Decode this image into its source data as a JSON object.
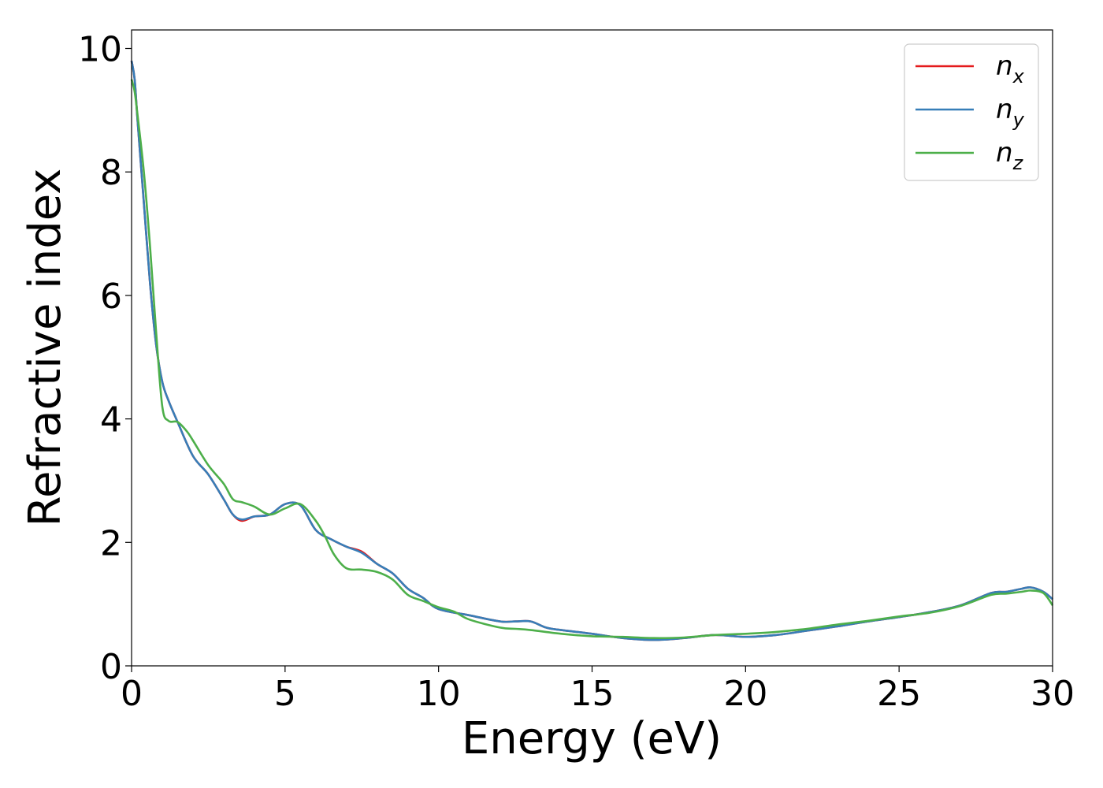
{
  "chart_data": {
    "type": "line",
    "title": "",
    "xlabel": "Energy (eV)",
    "ylabel": "Refractive index",
    "xlim": [
      0,
      30
    ],
    "ylim": [
      0,
      10.3
    ],
    "xticks": [
      0,
      5,
      10,
      15,
      20,
      25,
      30
    ],
    "yticks": [
      0,
      2,
      4,
      6,
      8,
      10
    ],
    "grid": false,
    "legend_position": "top-right",
    "series": [
      {
        "name": "n",
        "subscript": "x",
        "color": "#e41a1c",
        "x": [
          0.0,
          0.1,
          0.2,
          0.4,
          0.6,
          0.8,
          1.0,
          1.2,
          1.5,
          2.0,
          2.5,
          3.0,
          3.3,
          3.6,
          4.0,
          4.5,
          5.0,
          5.5,
          6.0,
          6.5,
          7.0,
          7.5,
          8.0,
          8.5,
          9.0,
          9.5,
          10.0,
          11.0,
          12.0,
          12.5,
          13.0,
          13.5,
          14.0,
          15.0,
          16.0,
          17.0,
          18.0,
          19.0,
          20.0,
          21.0,
          22.0,
          23.0,
          24.0,
          25.0,
          26.0,
          27.0,
          28.0,
          28.5,
          29.0,
          29.3,
          29.7,
          30.0
        ],
        "y": [
          9.8,
          9.5,
          8.8,
          7.5,
          6.2,
          5.2,
          4.6,
          4.3,
          3.95,
          3.4,
          3.1,
          2.7,
          2.45,
          2.35,
          2.42,
          2.45,
          2.62,
          2.6,
          2.2,
          2.05,
          1.93,
          1.85,
          1.65,
          1.5,
          1.25,
          1.1,
          0.92,
          0.82,
          0.72,
          0.72,
          0.72,
          0.62,
          0.58,
          0.52,
          0.45,
          0.42,
          0.45,
          0.5,
          0.47,
          0.5,
          0.57,
          0.64,
          0.72,
          0.79,
          0.87,
          0.98,
          1.18,
          1.2,
          1.25,
          1.27,
          1.2,
          1.08
        ]
      },
      {
        "name": "n",
        "subscript": "y",
        "color": "#377eb8",
        "x": [
          0.0,
          0.1,
          0.2,
          0.4,
          0.6,
          0.8,
          1.0,
          1.2,
          1.5,
          2.0,
          2.5,
          3.0,
          3.3,
          3.6,
          4.0,
          4.5,
          5.0,
          5.5,
          6.0,
          6.5,
          7.0,
          7.5,
          8.0,
          8.5,
          9.0,
          9.5,
          10.0,
          11.0,
          12.0,
          12.5,
          13.0,
          13.5,
          14.0,
          15.0,
          16.0,
          17.0,
          18.0,
          19.0,
          20.0,
          21.0,
          22.0,
          23.0,
          24.0,
          25.0,
          26.0,
          27.0,
          28.0,
          28.5,
          29.0,
          29.3,
          29.7,
          30.0
        ],
        "y": [
          9.8,
          9.5,
          8.8,
          7.5,
          6.2,
          5.2,
          4.6,
          4.3,
          3.95,
          3.4,
          3.1,
          2.7,
          2.45,
          2.37,
          2.42,
          2.45,
          2.62,
          2.6,
          2.2,
          2.05,
          1.93,
          1.83,
          1.65,
          1.5,
          1.25,
          1.1,
          0.92,
          0.82,
          0.72,
          0.72,
          0.72,
          0.62,
          0.58,
          0.52,
          0.45,
          0.42,
          0.45,
          0.5,
          0.47,
          0.5,
          0.57,
          0.64,
          0.72,
          0.79,
          0.87,
          0.98,
          1.18,
          1.2,
          1.25,
          1.27,
          1.2,
          1.08
        ]
      },
      {
        "name": "n",
        "subscript": "z",
        "color": "#4daf4a",
        "x": [
          0.0,
          0.1,
          0.2,
          0.4,
          0.6,
          0.8,
          1.0,
          1.2,
          1.5,
          1.8,
          2.0,
          2.5,
          3.0,
          3.3,
          3.6,
          4.0,
          4.5,
          5.0,
          5.5,
          6.0,
          6.3,
          6.6,
          7.0,
          7.5,
          8.0,
          8.5,
          9.0,
          9.5,
          10.0,
          10.5,
          11.0,
          12.0,
          12.5,
          13.0,
          14.0,
          15.0,
          16.0,
          17.0,
          18.0,
          19.0,
          20.0,
          21.0,
          22.0,
          23.0,
          24.0,
          25.0,
          26.0,
          27.0,
          28.0,
          28.5,
          29.0,
          29.3,
          29.7,
          30.0
        ],
        "y": [
          9.5,
          9.3,
          8.9,
          8.0,
          6.8,
          5.4,
          4.2,
          3.97,
          3.95,
          3.8,
          3.65,
          3.25,
          2.95,
          2.7,
          2.65,
          2.58,
          2.45,
          2.55,
          2.62,
          2.35,
          2.1,
          1.8,
          1.58,
          1.56,
          1.52,
          1.4,
          1.15,
          1.05,
          0.95,
          0.88,
          0.75,
          0.62,
          0.6,
          0.58,
          0.52,
          0.48,
          0.47,
          0.45,
          0.46,
          0.5,
          0.52,
          0.55,
          0.6,
          0.67,
          0.73,
          0.8,
          0.86,
          0.97,
          1.15,
          1.17,
          1.2,
          1.22,
          1.18,
          0.98
        ]
      }
    ]
  }
}
